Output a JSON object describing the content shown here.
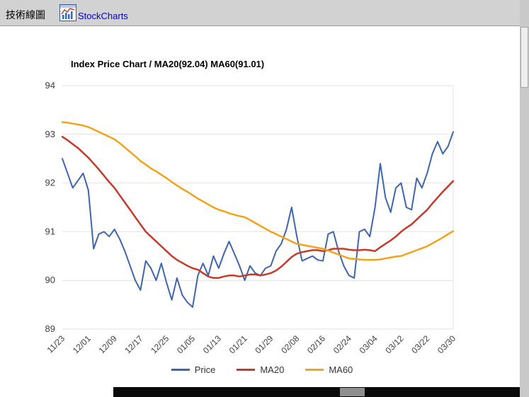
{
  "topbar": {
    "title": "技術線圖",
    "link": "StockCharts",
    "logo_icon": "stockcharts-chart-icon"
  },
  "chart_data": {
    "type": "line",
    "title": "Index Price Chart / MA20(92.04) MA60(91.01)",
    "xlabel": "",
    "ylabel": "",
    "ylim": [
      89,
      94
    ],
    "y_ticks": [
      89,
      90,
      91,
      92,
      93,
      94
    ],
    "grid": "horizontal",
    "legend_position": "bottom",
    "tick_every": 5,
    "x_tick_labels": [
      "11/23",
      "12/01",
      "12/09",
      "12/17",
      "12/25",
      "01/05",
      "01/13",
      "01/21",
      "01/29",
      "02/08",
      "02/16",
      "02/24",
      "03/04",
      "03/12",
      "03/22",
      "03/30"
    ],
    "series": [
      {
        "name": "Price",
        "color": "#3e66ad",
        "values": [
          92.5,
          92.2,
          91.9,
          92.05,
          92.2,
          91.85,
          90.65,
          90.95,
          91.0,
          90.9,
          91.05,
          90.85,
          90.6,
          90.3,
          90.0,
          89.8,
          90.4,
          90.25,
          90.0,
          90.35,
          89.95,
          89.6,
          90.05,
          89.7,
          89.55,
          89.45,
          90.1,
          90.35,
          90.1,
          90.5,
          90.25,
          90.55,
          90.8,
          90.55,
          90.3,
          90.0,
          90.3,
          90.15,
          90.1,
          90.25,
          90.3,
          90.6,
          90.75,
          91.05,
          91.5,
          90.9,
          90.4,
          90.45,
          90.5,
          90.42,
          90.4,
          90.95,
          91.0,
          90.6,
          90.3,
          90.1,
          90.05,
          91.0,
          91.05,
          90.9,
          91.5,
          92.4,
          91.7,
          91.4,
          91.9,
          92.0,
          91.5,
          91.45,
          92.1,
          91.9,
          92.2,
          92.6,
          92.85,
          92.6,
          92.75,
          93.05
        ]
      },
      {
        "name": "MA20",
        "color": "#c43b2c",
        "values": [
          92.95,
          92.88,
          92.8,
          92.72,
          92.62,
          92.52,
          92.4,
          92.28,
          92.15,
          92.02,
          91.9,
          91.75,
          91.6,
          91.45,
          91.3,
          91.15,
          91.0,
          90.9,
          90.8,
          90.7,
          90.6,
          90.5,
          90.42,
          90.36,
          90.3,
          90.25,
          90.22,
          90.15,
          90.08,
          90.05,
          90.05,
          90.08,
          90.1,
          90.1,
          90.08,
          90.1,
          90.12,
          90.12,
          90.1,
          90.12,
          90.15,
          90.2,
          90.28,
          90.38,
          90.48,
          90.55,
          90.58,
          90.6,
          90.62,
          90.62,
          90.6,
          90.62,
          90.65,
          90.65,
          90.65,
          90.63,
          90.62,
          90.62,
          90.63,
          90.62,
          90.6,
          90.68,
          90.75,
          90.82,
          90.9,
          91.0,
          91.08,
          91.15,
          91.25,
          91.35,
          91.45,
          91.58,
          91.7,
          91.82,
          91.93,
          92.04
        ]
      },
      {
        "name": "MA60",
        "color": "#f0a31b",
        "values": [
          93.25,
          93.24,
          93.22,
          93.2,
          93.18,
          93.15,
          93.1,
          93.05,
          93.0,
          92.95,
          92.9,
          92.82,
          92.73,
          92.64,
          92.55,
          92.45,
          92.38,
          92.3,
          92.24,
          92.17,
          92.1,
          92.02,
          91.95,
          91.88,
          91.82,
          91.75,
          91.68,
          91.62,
          91.56,
          91.5,
          91.45,
          91.42,
          91.38,
          91.35,
          91.32,
          91.3,
          91.24,
          91.18,
          91.12,
          91.06,
          91.0,
          90.95,
          90.9,
          90.85,
          90.8,
          90.75,
          90.73,
          90.71,
          90.69,
          90.67,
          90.65,
          90.61,
          90.57,
          90.53,
          90.49,
          90.45,
          90.44,
          90.43,
          90.42,
          90.42,
          90.42,
          90.43,
          90.45,
          90.47,
          90.49,
          90.5,
          90.54,
          90.58,
          90.62,
          90.66,
          90.7,
          90.76,
          90.82,
          90.88,
          90.95,
          91.01
        ]
      }
    ]
  }
}
